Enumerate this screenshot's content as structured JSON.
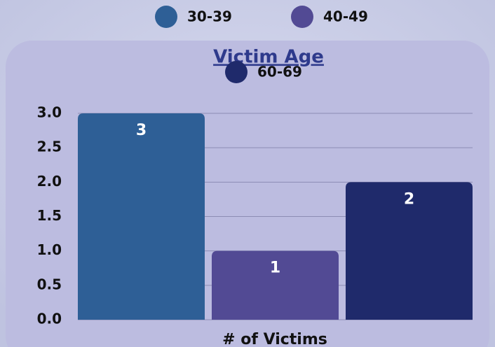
{
  "chart_data": {
    "type": "bar",
    "title": "Victim Age",
    "x_label": "# of Victims",
    "categories": [
      null
    ],
    "series": [
      {
        "name": "30-39",
        "color": "#2e5f96",
        "values": [
          3
        ]
      },
      {
        "name": "40-49",
        "color": "#524a94",
        "values": [
          1
        ]
      },
      {
        "name": "60-69",
        "color": "#1f2a6b",
        "values": [
          2
        ]
      }
    ],
    "ylim": [
      0,
      3
    ],
    "yticks": [
      {
        "value": 0,
        "label": "0.0"
      },
      {
        "value": 0.5,
        "label": "0.5"
      },
      {
        "value": 1,
        "label": "1.0"
      },
      {
        "value": 1.5,
        "label": "1.5"
      },
      {
        "value": 2,
        "label": "2.0"
      },
      {
        "value": 2.5,
        "label": "2.5"
      },
      {
        "value": 3,
        "label": "3.0"
      }
    ],
    "grid": true
  }
}
